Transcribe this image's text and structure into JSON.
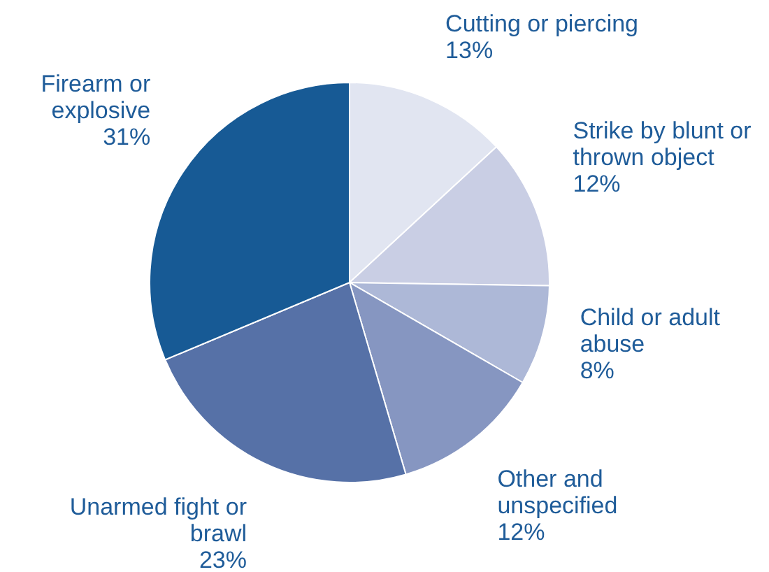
{
  "chart_data": {
    "type": "pie",
    "categories": [
      "Cutting or piercing",
      "Strike by blunt or thrown object",
      "Child or adult abuse",
      "Other and unspecified",
      "Unarmed fight or brawl",
      "Firearm or explosive"
    ],
    "values": [
      13,
      12,
      8,
      12,
      23,
      31
    ],
    "value_labels": [
      "13%",
      "12%",
      "8%",
      "12%",
      "23%",
      "31%"
    ],
    "colors": [
      "#e1e5f1",
      "#c9cee4",
      "#adb8d7",
      "#8696c1",
      "#5671a7",
      "#175a95"
    ],
    "legend": false
  }
}
